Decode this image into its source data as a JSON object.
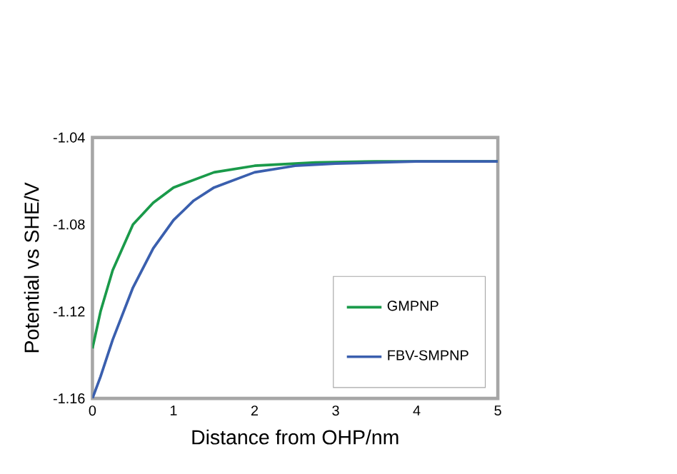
{
  "chart_data": {
    "type": "line",
    "xlabel": "Distance from OHP/nm",
    "ylabel": "Potential vs SHE/V",
    "xlim": [
      0,
      5
    ],
    "ylim": [
      -1.16,
      -1.04
    ],
    "xticks": [
      0,
      1,
      2,
      3,
      4,
      5
    ],
    "yticks": [
      -1.16,
      -1.12,
      -1.08,
      -1.04
    ],
    "legend": "bottom right",
    "grid": false,
    "marker": "none",
    "line_style": "solid",
    "series": [
      {
        "name": "GMPNP",
        "color": "#1a9a4a",
        "x": [
          0,
          0.1,
          0.25,
          0.5,
          0.75,
          1,
          1.5,
          2,
          2.75,
          3.5,
          5
        ],
        "values": [
          -1.137,
          -1.12,
          -1.101,
          -1.08,
          -1.07,
          -1.063,
          -1.056,
          -1.053,
          -1.0515,
          -1.051,
          -1.051
        ]
      },
      {
        "name": "FBV-SMPNP",
        "color": "#3a5fae",
        "x": [
          0,
          0.1,
          0.25,
          0.5,
          0.75,
          1,
          1.25,
          1.5,
          2,
          2.5,
          3,
          4,
          5
        ],
        "values": [
          -1.16,
          -1.15,
          -1.133,
          -1.109,
          -1.091,
          -1.078,
          -1.069,
          -1.063,
          -1.056,
          -1.053,
          -1.052,
          -1.051,
          -1.051
        ]
      }
    ]
  }
}
